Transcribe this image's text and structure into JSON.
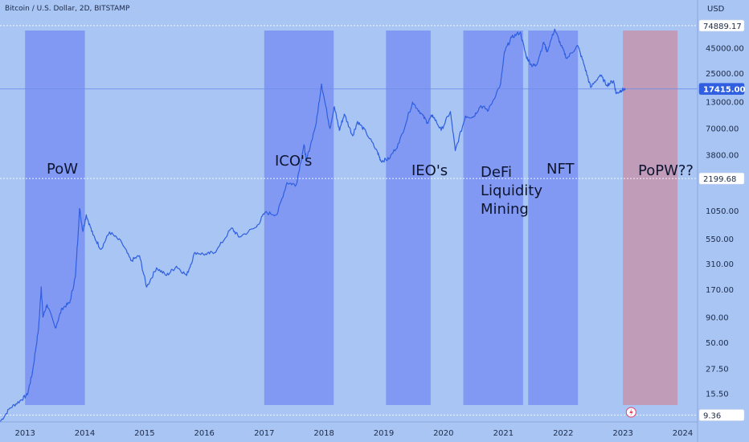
{
  "title": "Bitcoin / U.S. Dollar, 2D, BITSTAMP",
  "currency": "USD",
  "colors": {
    "background": "#a9c5f3",
    "line": "#2f5fe0",
    "band": "#7f97f2",
    "band_popw": "#c29ab5",
    "axis_text": "#1b2a48",
    "price_label_bg": "#ffffff"
  },
  "chart_data": {
    "type": "line",
    "scale": "log",
    "ylim": [
      8,
      90000
    ],
    "xlim": [
      "2012-08-01",
      "2024-04-01"
    ],
    "x_ticks": [
      "2013",
      "2014",
      "2015",
      "2016",
      "2017",
      "2018",
      "2019",
      "2020",
      "2021",
      "2022",
      "2023",
      "2024"
    ],
    "y_ticks": [
      "45000.00",
      "25000.00",
      "13000.00",
      "7000.00",
      "3800.00",
      "1050.00",
      "550.00",
      "310.00",
      "170.00",
      "90.00",
      "50.00",
      "27.50",
      "15.50"
    ],
    "price_labels": [
      "74889.17",
      "17415.00",
      "2199.68",
      "9.36"
    ],
    "series": [
      {
        "values": [
          [
            "2012-08-01",
            8
          ],
          [
            "2012-10-01",
            11
          ],
          [
            "2012-12-01",
            13
          ],
          [
            "2013-01-15",
            15
          ],
          [
            "2013-02-15",
            25
          ],
          [
            "2013-03-25",
            70
          ],
          [
            "2013-04-10",
            180
          ],
          [
            "2013-04-20",
            90
          ],
          [
            "2013-05-15",
            120
          ],
          [
            "2013-07-05",
            70
          ],
          [
            "2013-08-15",
            110
          ],
          [
            "2013-10-01",
            125
          ],
          [
            "2013-11-05",
            230
          ],
          [
            "2013-11-30",
            1100
          ],
          [
            "2013-12-20",
            650
          ],
          [
            "2014-01-10",
            950
          ],
          [
            "2014-02-20",
            600
          ],
          [
            "2014-04-10",
            430
          ],
          [
            "2014-06-01",
            640
          ],
          [
            "2014-08-15",
            500
          ],
          [
            "2014-10-10",
            330
          ],
          [
            "2014-12-01",
            370
          ],
          [
            "2015-01-14",
            180
          ],
          [
            "2015-03-15",
            280
          ],
          [
            "2015-05-15",
            235
          ],
          [
            "2015-07-15",
            290
          ],
          [
            "2015-09-15",
            235
          ],
          [
            "2015-11-05",
            400
          ],
          [
            "2016-01-15",
            380
          ],
          [
            "2016-03-15",
            415
          ],
          [
            "2016-06-15",
            700
          ],
          [
            "2016-08-01",
            570
          ],
          [
            "2016-11-15",
            720
          ],
          [
            "2017-01-05",
            1000
          ],
          [
            "2017-03-20",
            960
          ],
          [
            "2017-05-20",
            2000
          ],
          [
            "2017-07-15",
            1900
          ],
          [
            "2017-09-01",
            4800
          ],
          [
            "2017-09-15",
            3300
          ],
          [
            "2017-11-15",
            8000
          ],
          [
            "2017-12-17",
            19500
          ],
          [
            "2018-02-06",
            7000
          ],
          [
            "2018-03-05",
            11500
          ],
          [
            "2018-04-05",
            6700
          ],
          [
            "2018-05-05",
            9700
          ],
          [
            "2018-06-25",
            5900
          ],
          [
            "2018-07-25",
            8200
          ],
          [
            "2018-09-15",
            6400
          ],
          [
            "2018-11-25",
            4000
          ],
          [
            "2018-12-15",
            3300
          ],
          [
            "2019-02-01",
            3450
          ],
          [
            "2019-04-05",
            5000
          ],
          [
            "2019-06-26",
            12800
          ],
          [
            "2019-08-15",
            10000
          ],
          [
            "2019-09-25",
            8000
          ],
          [
            "2019-10-26",
            9500
          ],
          [
            "2019-12-18",
            6700
          ],
          [
            "2020-02-12",
            10300
          ],
          [
            "2020-03-13",
            4200
          ],
          [
            "2020-05-15",
            9300
          ],
          [
            "2020-07-01",
            9100
          ],
          [
            "2020-08-15",
            11800
          ],
          [
            "2020-10-01",
            10600
          ],
          [
            "2020-12-15",
            19500
          ],
          [
            "2021-01-08",
            41000
          ],
          [
            "2021-02-20",
            57000
          ],
          [
            "2021-04-14",
            64500
          ],
          [
            "2021-05-20",
            37000
          ],
          [
            "2021-06-22",
            30000
          ],
          [
            "2021-07-20",
            30000
          ],
          [
            "2021-09-05",
            51000
          ],
          [
            "2021-09-25",
            41000
          ],
          [
            "2021-11-10",
            69000
          ],
          [
            "2021-12-20",
            47000
          ],
          [
            "2022-01-24",
            35000
          ],
          [
            "2022-03-30",
            47500
          ],
          [
            "2022-05-10",
            30000
          ],
          [
            "2022-06-18",
            18000
          ],
          [
            "2022-08-15",
            24000
          ],
          [
            "2022-09-25",
            19000
          ],
          [
            "2022-11-05",
            21000
          ],
          [
            "2022-11-21",
            15600
          ],
          [
            "2022-12-20",
            16800
          ],
          [
            "2023-01-15",
            17415
          ]
        ]
      }
    ],
    "bands": [
      {
        "label": "PoW",
        "start": "2013-01-01",
        "end": "2014-01-01"
      },
      {
        "label": "ICO's",
        "start": "2017-01-01",
        "end": "2018-03-01"
      },
      {
        "label": "IEO's",
        "start": "2019-01-15",
        "end": "2019-10-15"
      },
      {
        "label": "DeFi\nLiquidity\nMining",
        "start": "2020-05-01",
        "end": "2021-05-01"
      },
      {
        "label": "NFT",
        "start": "2021-06-01",
        "end": "2022-04-01"
      },
      {
        "label": "PoPW??",
        "start": "2023-01-01",
        "end": "2023-12-01"
      }
    ]
  }
}
